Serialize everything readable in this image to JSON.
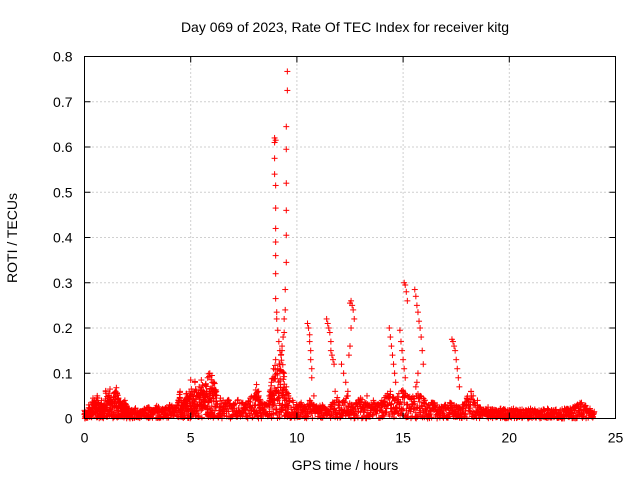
{
  "chart_data": {
    "type": "scatter",
    "title": "Day 069 of 2023, Rate Of TEC Index for receiver kitg",
    "xlabel": "GPS time / hours",
    "ylabel": "ROTI / TECUs",
    "xlim": [
      0,
      25
    ],
    "ylim": [
      0,
      0.8
    ],
    "xticks": [
      "0",
      "5",
      "10",
      "15",
      "20",
      "25"
    ],
    "yticks": [
      "0",
      "0.1",
      "0.2",
      "0.3",
      "0.4",
      "0.5",
      "0.6",
      "0.7",
      "0.8"
    ],
    "grid": true,
    "legend": "none",
    "marker": "plus",
    "color": "#ff0000",
    "series": [
      {
        "baseline_points": [
          [
            0.0,
            0.018
          ],
          [
            0.1,
            0.012
          ],
          [
            0.2,
            0.03
          ],
          [
            0.3,
            0.02
          ],
          [
            0.4,
            0.045
          ],
          [
            0.5,
            0.035
          ],
          [
            0.6,
            0.05
          ],
          [
            0.7,
            0.028
          ],
          [
            0.8,
            0.04
          ],
          [
            0.9,
            0.025
          ],
          [
            1.0,
            0.06
          ],
          [
            1.1,
            0.04
          ],
          [
            1.2,
            0.065
          ],
          [
            1.3,
            0.03
          ],
          [
            1.4,
            0.055
          ],
          [
            1.5,
            0.068
          ],
          [
            1.6,
            0.045
          ],
          [
            1.7,
            0.038
          ],
          [
            1.8,
            0.03
          ],
          [
            1.9,
            0.04
          ],
          [
            2.0,
            0.025
          ],
          [
            2.2,
            0.018
          ],
          [
            2.4,
            0.022
          ],
          [
            2.6,
            0.015
          ],
          [
            2.8,
            0.02
          ],
          [
            3.0,
            0.025
          ],
          [
            3.2,
            0.018
          ],
          [
            3.4,
            0.028
          ],
          [
            3.6,
            0.02
          ],
          [
            3.8,
            0.022
          ],
          [
            4.0,
            0.03
          ],
          [
            4.2,
            0.025
          ],
          [
            4.4,
            0.035
          ],
          [
            4.5,
            0.06
          ],
          [
            4.6,
            0.03
          ],
          [
            4.7,
            0.04
          ],
          [
            4.8,
            0.055
          ],
          [
            4.9,
            0.045
          ],
          [
            5.0,
            0.085
          ],
          [
            5.1,
            0.06
          ],
          [
            5.2,
            0.08
          ],
          [
            5.3,
            0.05
          ],
          [
            5.4,
            0.07
          ],
          [
            5.5,
            0.085
          ],
          [
            5.6,
            0.06
          ],
          [
            5.7,
            0.075
          ],
          [
            5.8,
            0.09
          ],
          [
            5.9,
            0.1
          ],
          [
            6.0,
            0.095
          ],
          [
            6.1,
            0.08
          ],
          [
            6.2,
            0.06
          ],
          [
            6.4,
            0.045
          ],
          [
            6.6,
            0.035
          ],
          [
            6.8,
            0.04
          ],
          [
            7.0,
            0.03
          ],
          [
            7.2,
            0.04
          ],
          [
            7.4,
            0.035
          ],
          [
            7.6,
            0.03
          ],
          [
            7.8,
            0.045
          ],
          [
            8.0,
            0.05
          ],
          [
            8.1,
            0.075
          ],
          [
            8.2,
            0.06
          ],
          [
            8.3,
            0.035
          ],
          [
            8.5,
            0.03
          ],
          [
            8.7,
            0.05
          ],
          [
            8.8,
            0.08
          ],
          [
            8.9,
            0.11
          ],
          [
            9.0,
            0.13
          ],
          [
            9.1,
            0.11
          ],
          [
            9.2,
            0.12
          ],
          [
            9.3,
            0.15
          ],
          [
            9.4,
            0.1
          ],
          [
            9.5,
            0.07
          ],
          [
            9.6,
            0.05
          ],
          [
            9.8,
            0.04
          ],
          [
            10.0,
            0.03
          ],
          [
            10.2,
            0.035
          ],
          [
            10.4,
            0.025
          ],
          [
            10.6,
            0.04
          ],
          [
            10.8,
            0.03
          ],
          [
            11.0,
            0.025
          ],
          [
            11.2,
            0.03
          ],
          [
            11.4,
            0.02
          ],
          [
            11.6,
            0.03
          ],
          [
            11.8,
            0.06
          ],
          [
            12.0,
            0.035
          ],
          [
            12.2,
            0.04
          ],
          [
            12.4,
            0.05
          ],
          [
            12.6,
            0.03
          ],
          [
            12.8,
            0.035
          ],
          [
            13.0,
            0.045
          ],
          [
            13.2,
            0.035
          ],
          [
            13.4,
            0.03
          ],
          [
            13.6,
            0.035
          ],
          [
            13.8,
            0.03
          ],
          [
            14.0,
            0.04
          ],
          [
            14.2,
            0.05
          ],
          [
            14.4,
            0.06
          ],
          [
            14.6,
            0.04
          ],
          [
            14.8,
            0.055
          ],
          [
            15.0,
            0.06
          ],
          [
            15.2,
            0.05
          ],
          [
            15.4,
            0.045
          ],
          [
            15.6,
            0.07
          ],
          [
            15.8,
            0.05
          ],
          [
            16.0,
            0.04
          ],
          [
            16.2,
            0.03
          ],
          [
            16.4,
            0.035
          ],
          [
            16.6,
            0.03
          ],
          [
            16.8,
            0.025
          ],
          [
            17.0,
            0.03
          ],
          [
            17.2,
            0.035
          ],
          [
            17.4,
            0.03
          ],
          [
            17.6,
            0.025
          ],
          [
            17.8,
            0.03
          ],
          [
            18.0,
            0.045
          ],
          [
            18.2,
            0.06
          ],
          [
            18.4,
            0.03
          ],
          [
            18.6,
            0.025
          ],
          [
            18.8,
            0.02
          ],
          [
            19.0,
            0.025
          ],
          [
            19.2,
            0.02
          ],
          [
            19.4,
            0.018
          ],
          [
            19.6,
            0.022
          ],
          [
            19.8,
            0.02
          ],
          [
            20.0,
            0.018
          ],
          [
            20.2,
            0.022
          ],
          [
            20.4,
            0.018
          ],
          [
            20.6,
            0.02
          ],
          [
            20.8,
            0.018
          ],
          [
            21.0,
            0.022
          ],
          [
            21.2,
            0.02
          ],
          [
            21.4,
            0.018
          ],
          [
            21.6,
            0.02
          ],
          [
            21.8,
            0.022
          ],
          [
            22.0,
            0.018
          ],
          [
            22.2,
            0.02
          ],
          [
            22.4,
            0.018
          ],
          [
            22.6,
            0.022
          ],
          [
            22.8,
            0.02
          ],
          [
            23.0,
            0.025
          ],
          [
            23.2,
            0.03
          ],
          [
            23.4,
            0.035
          ],
          [
            23.6,
            0.028
          ],
          [
            23.8,
            0.022
          ],
          [
            24.0,
            0.015
          ]
        ],
        "spike_points": [
          [
            8.95,
            0.62
          ],
          [
            8.95,
            0.61
          ],
          [
            9.0,
            0.615
          ],
          [
            8.95,
            0.575
          ],
          [
            8.95,
            0.54
          ],
          [
            9.0,
            0.515
          ],
          [
            9.0,
            0.465
          ],
          [
            9.0,
            0.42
          ],
          [
            9.0,
            0.39
          ],
          [
            9.0,
            0.36
          ],
          [
            9.0,
            0.32
          ],
          [
            9.0,
            0.265
          ],
          [
            9.05,
            0.235
          ],
          [
            9.05,
            0.22
          ],
          [
            9.1,
            0.195
          ],
          [
            9.15,
            0.17
          ],
          [
            9.2,
            0.15
          ],
          [
            9.25,
            0.14
          ],
          [
            9.3,
            0.16
          ],
          [
            9.35,
            0.18
          ],
          [
            9.4,
            0.19
          ],
          [
            9.4,
            0.22
          ],
          [
            9.45,
            0.24
          ],
          [
            9.45,
            0.285
          ],
          [
            9.5,
            0.345
          ],
          [
            9.5,
            0.405
          ],
          [
            9.5,
            0.46
          ],
          [
            9.5,
            0.52
          ],
          [
            9.5,
            0.595
          ],
          [
            9.5,
            0.645
          ],
          [
            9.55,
            0.725
          ],
          [
            9.55,
            0.767
          ],
          [
            10.5,
            0.21
          ],
          [
            10.55,
            0.2
          ],
          [
            10.6,
            0.185
          ],
          [
            10.6,
            0.17
          ],
          [
            10.65,
            0.15
          ],
          [
            10.65,
            0.13
          ],
          [
            10.7,
            0.11
          ],
          [
            10.7,
            0.09
          ],
          [
            10.8,
            0.05
          ],
          [
            11.4,
            0.22
          ],
          [
            11.45,
            0.21
          ],
          [
            11.5,
            0.2
          ],
          [
            11.55,
            0.19
          ],
          [
            11.6,
            0.17
          ],
          [
            11.6,
            0.15
          ],
          [
            11.65,
            0.14
          ],
          [
            11.7,
            0.13
          ],
          [
            11.75,
            0.12
          ],
          [
            12.1,
            0.12
          ],
          [
            12.2,
            0.1
          ],
          [
            12.3,
            0.08
          ],
          [
            12.4,
            0.06
          ],
          [
            12.5,
            0.255
          ],
          [
            12.55,
            0.26
          ],
          [
            12.6,
            0.25
          ],
          [
            12.65,
            0.24
          ],
          [
            12.7,
            0.22
          ],
          [
            12.55,
            0.2
          ],
          [
            12.5,
            0.16
          ],
          [
            12.45,
            0.14
          ],
          [
            14.35,
            0.2
          ],
          [
            14.4,
            0.18
          ],
          [
            14.45,
            0.16
          ],
          [
            14.5,
            0.14
          ],
          [
            14.55,
            0.12
          ],
          [
            14.6,
            0.1
          ],
          [
            14.65,
            0.08
          ],
          [
            14.85,
            0.195
          ],
          [
            14.9,
            0.17
          ],
          [
            14.95,
            0.15
          ],
          [
            15.0,
            0.13
          ],
          [
            15.05,
            0.11
          ],
          [
            15.1,
            0.09
          ],
          [
            15.05,
            0.3
          ],
          [
            15.1,
            0.295
          ],
          [
            15.15,
            0.28
          ],
          [
            15.2,
            0.26
          ],
          [
            15.55,
            0.285
          ],
          [
            15.6,
            0.27
          ],
          [
            15.65,
            0.25
          ],
          [
            15.7,
            0.235
          ],
          [
            15.75,
            0.215
          ],
          [
            15.8,
            0.2
          ],
          [
            15.85,
            0.18
          ],
          [
            15.9,
            0.15
          ],
          [
            15.95,
            0.12
          ],
          [
            15.7,
            0.1
          ],
          [
            15.65,
            0.08
          ],
          [
            17.3,
            0.175
          ],
          [
            17.35,
            0.17
          ],
          [
            17.4,
            0.16
          ],
          [
            17.45,
            0.15
          ],
          [
            17.5,
            0.13
          ],
          [
            17.55,
            0.11
          ],
          [
            17.6,
            0.09
          ],
          [
            17.65,
            0.07
          ],
          [
            13.3,
            0.05
          ],
          [
            13.6,
            0.04
          ],
          [
            18.3,
            0.05
          ],
          [
            18.5,
            0.04
          ]
        ]
      }
    ]
  }
}
